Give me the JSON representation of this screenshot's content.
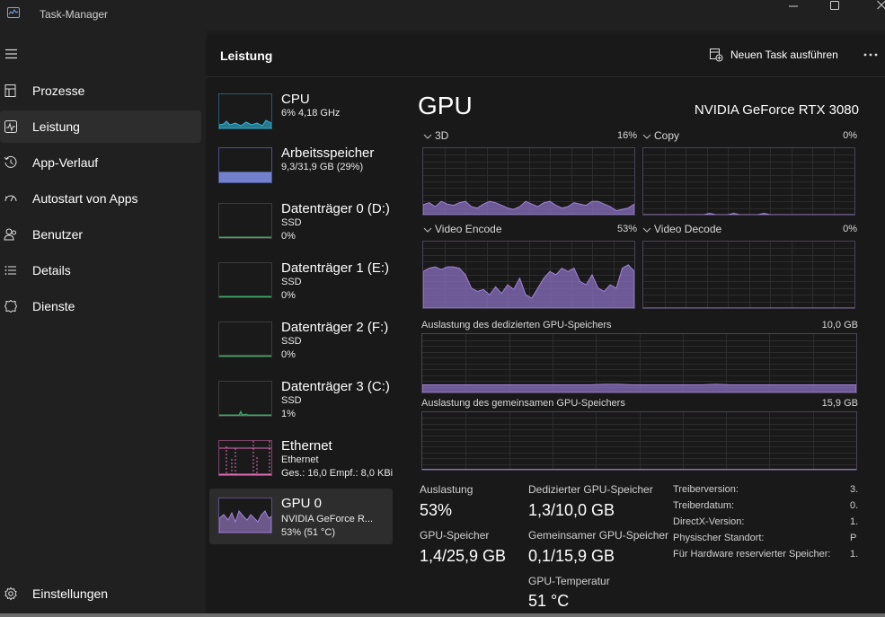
{
  "window": {
    "title": "Task-Manager"
  },
  "sidebar": {
    "items": [
      {
        "label": "Prozesse",
        "icon": "processes-icon"
      },
      {
        "label": "Leistung",
        "icon": "performance-icon",
        "active": true
      },
      {
        "label": "App-Verlauf",
        "icon": "history-icon"
      },
      {
        "label": "Autostart von Apps",
        "icon": "startup-icon"
      },
      {
        "label": "Benutzer",
        "icon": "users-icon"
      },
      {
        "label": "Details",
        "icon": "details-icon"
      },
      {
        "label": "Dienste",
        "icon": "services-icon"
      }
    ],
    "settings_label": "Einstellungen"
  },
  "header": {
    "title": "Leistung",
    "new_task_label": "Neuen Task ausführen"
  },
  "resources": [
    {
      "name": "CPU",
      "line1": "6% 4,18 GHz",
      "line2": "",
      "color": "#2fb8d8"
    },
    {
      "name": "Arbeitsspeicher",
      "line1": "9,3/31,9 GB (29%)",
      "line2": "",
      "color": "#7c8be0",
      "usage": 0.29
    },
    {
      "name": "Datenträger 0 (D:)",
      "line1": "SSD",
      "line2": "0%",
      "color": "#3fa86b"
    },
    {
      "name": "Datenträger 1 (E:)",
      "line1": "SSD",
      "line2": "0%",
      "color": "#3fa86b"
    },
    {
      "name": "Datenträger 2 (F:)",
      "line1": "SSD",
      "line2": "0%",
      "color": "#3fa86b"
    },
    {
      "name": "Datenträger 3 (C:)",
      "line1": "SSD",
      "line2": "1%",
      "color": "#3fa86b"
    },
    {
      "name": "Ethernet",
      "line1": "Ethernet",
      "line2": "Ges.: 16,0 Empf.: 8,0 KBi",
      "color": "#e070b8"
    },
    {
      "name": "GPU 0",
      "line1": "NVIDIA GeForce R...",
      "line2": "53% (51 °C)",
      "color": "#a383d6",
      "selected": true
    }
  ],
  "gpu": {
    "title": "GPU",
    "model": "NVIDIA GeForce RTX 3080",
    "engines": [
      {
        "label": "3D",
        "percent": "16%"
      },
      {
        "label": "Copy",
        "percent": "0%"
      },
      {
        "label": "Video Encode",
        "percent": "53%"
      },
      {
        "label": "Video Decode",
        "percent": "0%"
      }
    ],
    "dedicated": {
      "label": "Auslastung des dedizierten GPU-Speichers",
      "max": "10,0 GB"
    },
    "shared": {
      "label": "Auslastung des gemeinsamen GPU-Speichers",
      "max": "15,9 GB"
    },
    "stats": {
      "auslastung_label": "Auslastung",
      "auslastung": "53%",
      "gpu_speicher_label": "GPU-Speicher",
      "gpu_speicher": "1,4/25,9 GB",
      "dedicated_label": "Dedizierter GPU-Speicher",
      "dedicated": "1,3/10,0 GB",
      "shared_label": "Gemeinsamer GPU-Speicher",
      "shared": "0,1/15,9 GB",
      "temp_label": "GPU-Temperatur",
      "temp": "51 °C"
    },
    "info": [
      {
        "label": "Treiberversion:",
        "value": "3."
      },
      {
        "label": "Treiberdatum:",
        "value": "0."
      },
      {
        "label": "DirectX-Version:",
        "value": "1."
      },
      {
        "label": "Physischer Standort:",
        "value": "P"
      },
      {
        "label": "Für Hardware reservierter Speicher:",
        "value": "1."
      }
    ]
  },
  "colors": {
    "gpu_fill": "#8a6fc0",
    "gpu_line": "#a383d6",
    "grid": "#2c2c2c",
    "border": "#4a4358"
  }
}
